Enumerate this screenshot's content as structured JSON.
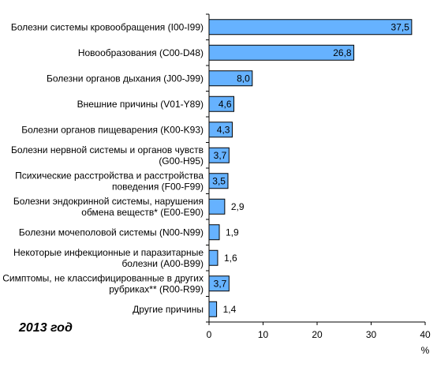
{
  "chart_data": {
    "type": "bar",
    "orientation": "horizontal",
    "categories": [
      "Болезни системы кровообращения (I00-I99)",
      "Новообразования (C00-D48)",
      "Болезни органов дыхания (J00-J99)",
      "Внешние причины (V01-Y89)",
      "Болезни органов пищеварения (K00-K93)",
      "Болезни нервной системы и органов чувств (G00-H95)",
      "Психические расстройства и расстройства поведения (F00-F99)",
      "Болезни эндокринной системы, нарушения обмена веществ* (E00-E90)",
      "Болезни мочеполовой системы (N00-N99)",
      "Некоторые инфекционные и паразитарные болезни (A00-B99)",
      "Симптомы, не классифицированные в других рубриках** (R00-R99)",
      "Другие причины"
    ],
    "category_lines": [
      [
        "Болезни системы кровообращения (I00-I99)"
      ],
      [
        "Новообразования (C00-D48)"
      ],
      [
        "Болезни органов дыхания (J00-J99)"
      ],
      [
        "Внешние причины (V01-Y89)"
      ],
      [
        "Болезни органов пищеварения (K00-K93)"
      ],
      [
        "Болезни нервной системы и органов чувств",
        "(G00-H95)"
      ],
      [
        "Психические расстройства и расстройства",
        "поведения (F00-F99)"
      ],
      [
        "Болезни эндокринной системы, нарушения",
        "обмена веществ* (E00-E90)"
      ],
      [
        "Болезни мочеполовой системы (N00-N99)"
      ],
      [
        "Некоторые инфекционные и паразитарные",
        "болезни (A00-B99)"
      ],
      [
        "Симптомы, не классифицированные в других",
        "рубриках** (R00-R99)"
      ],
      [
        "Другие причины"
      ]
    ],
    "values": [
      37.5,
      26.8,
      8.0,
      4.6,
      4.3,
      3.7,
      3.5,
      2.9,
      1.9,
      1.6,
      3.7,
      1.4
    ],
    "value_labels": [
      "37,5",
      "26,8",
      "8,0",
      "4,6",
      "4,3",
      "3,7",
      "3,5",
      "2,9",
      "1,9",
      "1,6",
      "3,7",
      "1,4"
    ],
    "xlim": [
      0,
      40
    ],
    "xticks": [
      0,
      10,
      20,
      30,
      40
    ],
    "xlabel": "%",
    "grid": false,
    "bar_color": "#66b2ff",
    "bar_border": "#000000"
  },
  "annotation": "2013 год"
}
